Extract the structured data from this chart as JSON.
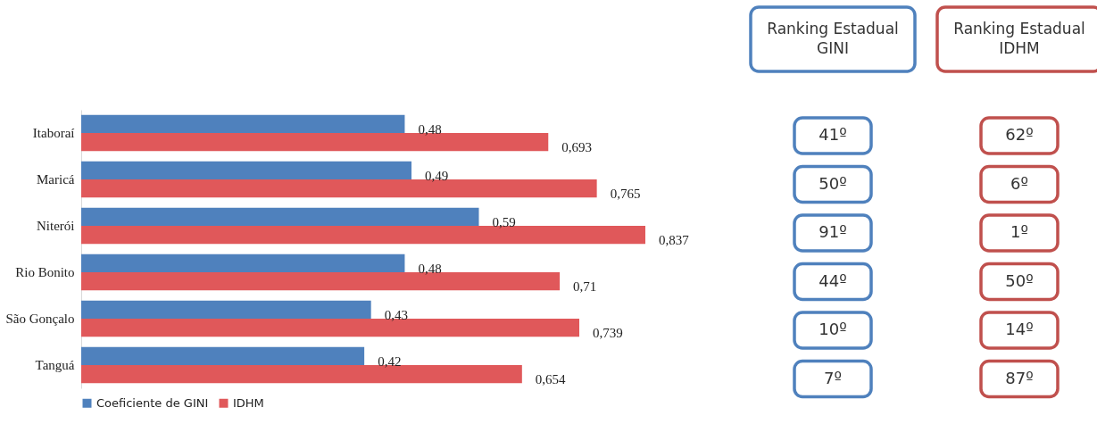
{
  "chart_data": [
    {
      "type": "bar",
      "orientation": "horizontal",
      "categories": [
        "Itaboraí",
        "Maricá",
        "Niterói",
        "Rio Bonito",
        "São Gonçalo",
        "Tanguá"
      ],
      "series": [
        {
          "name": "Coeficiente de GINI",
          "color": "#4f81bd",
          "values": [
            0.48,
            0.49,
            0.59,
            0.48,
            0.43,
            0.42
          ],
          "value_labels": [
            "0,48",
            "0,49",
            "0,59",
            "0,48",
            "0,43",
            "0,42"
          ]
        },
        {
          "name": "IDHM",
          "color": "#e0585a",
          "values": [
            0.693,
            0.765,
            0.837,
            0.71,
            0.739,
            0.654
          ],
          "value_labels": [
            "0,693",
            "0,765",
            "0,837",
            "0,71",
            "0,739",
            "0,654"
          ]
        }
      ],
      "legend": "bottom"
    },
    {
      "type": "other",
      "categories": [
        "Ranking Estadual GINI",
        "Ranking Estadual IDHM"
      ],
      "colors": [
        "#4f81bd",
        "#c0504d"
      ],
      "cell_labels": [
        [
          "41º",
          "62º"
        ],
        [
          "50º",
          "6º"
        ],
        [
          "91º",
          "1º"
        ],
        [
          "44º",
          "50º"
        ],
        [
          "10º",
          "14º"
        ],
        [
          "7º",
          "87º"
        ]
      ]
    }
  ]
}
